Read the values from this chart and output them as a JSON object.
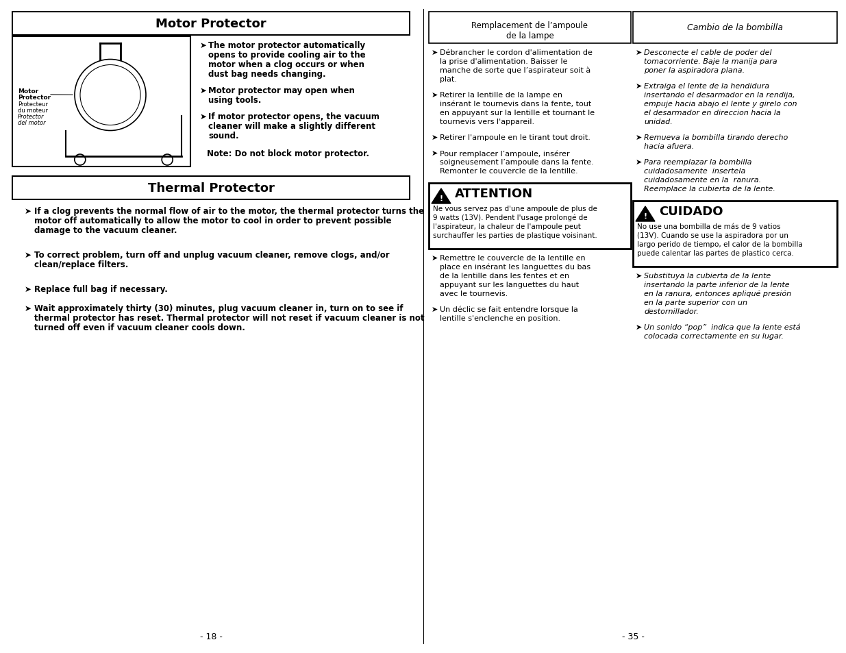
{
  "bg_color": "#ffffff",
  "motor_protector_title": "Motor Protector",
  "thermal_protector_title": "Thermal Protector",
  "mp_bullet1": [
    "The motor protector automatically",
    "opens to provide cooling air to the",
    "motor when a clog occurs or when",
    "dust bag needs changing."
  ],
  "mp_bullet2": [
    "Motor protector may open when",
    "using tools."
  ],
  "mp_bullet3": [
    "If motor protector opens, the vacuum",
    "cleaner will make a slightly different",
    "sound."
  ],
  "mp_note": "Note: Do not block motor protector.",
  "mp_label1": "Motor",
  "mp_label2": "Protector",
  "mp_label3": "Protecteur",
  "mp_label4": "du moteur",
  "mp_label5": "Protector",
  "mp_label6": "del motor",
  "tp_bullet1": [
    "If a clog prevents the normal flow of air to the motor, the thermal protector turns the",
    "motor off automatically to allow the motor to cool in order to prevent possible",
    "damage to the vacuum cleaner."
  ],
  "tp_bullet2": [
    "To correct problem, turn off and unplug vacuum cleaner, remove clogs, and/or",
    "clean/replace filters."
  ],
  "tp_bullet3": [
    "Replace full bag if necessary."
  ],
  "tp_bullet4": [
    "Wait approximately thirty (30) minutes, plug vacuum cleaner in, turn on to see if",
    "thermal protector has reset. Thermal protector will not reset if vacuum cleaner is not",
    "turned off even if vacuum cleaner cools down."
  ],
  "remplacement_header1": "Remplacement de l’ampoule",
  "remplacement_header2": "de la lampe",
  "cambio_header": "Cambio de la bombilla",
  "fr_bullet1": [
    "Débrancher le cordon d'alimentation de",
    "la prise d'alimentation. Baisser le",
    "manche de sorte que l’aspirateur soit à",
    "plat."
  ],
  "fr_bullet2": [
    "Retirer la lentille de la lampe en",
    "insérant le tournevis dans la fente, tout",
    "en appuyant sur la lentille et tournant le",
    "tournevis vers l'appareil."
  ],
  "fr_bullet3": [
    "Retirer l'ampoule en le tirant tout droit."
  ],
  "fr_bullet4": [
    "Pour remplacer l’ampoule, insérer",
    "soigneusement l’ampoule dans la fente.",
    "Remonter le couvercle de la lentille."
  ],
  "attention_title": "ATTENTION",
  "attention_body": [
    "Ne vous servez pas d'une ampoule de plus de",
    "9 watts (13V). Pendent l'usage prolongé de",
    "l'aspirateur, la chaleur de l'ampoule peut",
    "surchauffer les parties de plastique voisinant."
  ],
  "fr_bullet5": [
    "Remettre le couvercle de la lentille en",
    "place en insérant les languettes du bas",
    "de la lentille dans les fentes et en",
    "appuyant sur les languettes du haut",
    "avec le tournevis."
  ],
  "fr_bullet6": [
    "Un déclic se fait entendre lorsque la",
    "lentille s'enclenche en position."
  ],
  "es_bullet1": [
    "Desconecte el cable de poder del",
    "tomacorriente. Baje la manija para",
    "poner la aspiradora plana."
  ],
  "es_bullet2": [
    "Extraiga el lente de la hendidura",
    "insertando el desarmador en la rendija,",
    "empuje hacia abajo el lente y girelo con",
    "el desarmador en direccion hacia la",
    "unidad."
  ],
  "es_bullet3": [
    "Remueva la bombilla tirando derecho",
    "hacia afuera."
  ],
  "es_bullet4": [
    "Para reemplazar la bombilla",
    "cuidadosamente  insertela",
    "cuidadosamente en la  ranura.",
    "Reemplace la cubierta de la lente."
  ],
  "cuidado_title": "CUIDADO",
  "cuidado_body": [
    "No use una bombilla de más de 9 vatios",
    "(13V). Cuando se use la aspiradora por un",
    "largo perido de tiempo, el calor de la bombilla",
    "puede calentar las partes de plastico cerca."
  ],
  "es_bullet5": [
    "Substituya la cubierta de la lente",
    "insertando la parte inferior de la lente",
    "en la ranura, entonces apliqué presión",
    "en la parte superior con un",
    "destornillador."
  ],
  "es_bullet6": [
    "Un sonido “pop”  indica que la lente está",
    "colocada correctamente en su lugar."
  ],
  "page_num_left": "- 18 -",
  "page_num_right": "- 35 -"
}
